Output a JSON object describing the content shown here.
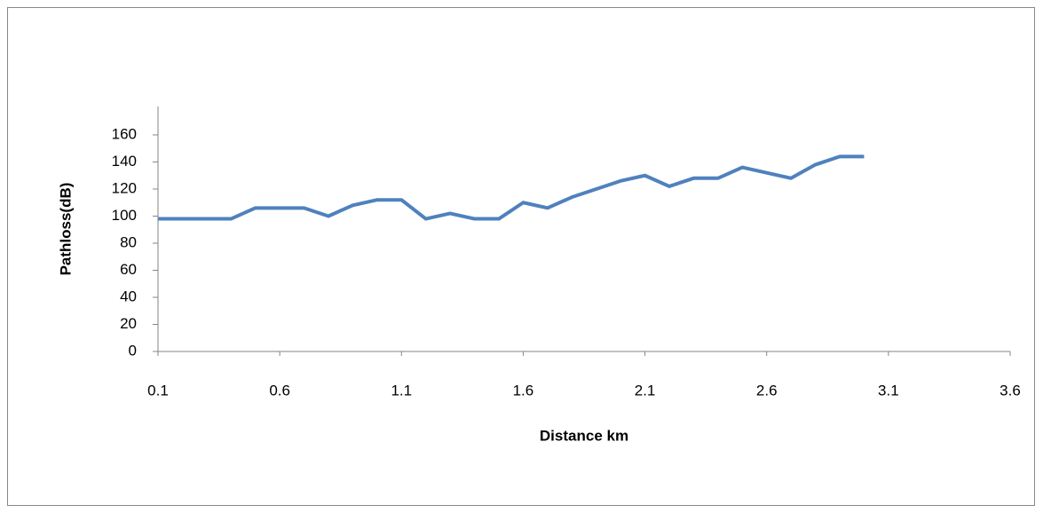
{
  "chart_data": {
    "type": "line",
    "x_label": "Distance km",
    "y_label": "Pathloss(dB)",
    "x": [
      0.1,
      0.2,
      0.3,
      0.4,
      0.5,
      0.6,
      0.7,
      0.8,
      0.9,
      1.0,
      1.1,
      1.2,
      1.3,
      1.4,
      1.5,
      1.6,
      1.7,
      1.8,
      1.9,
      2.0,
      2.1,
      2.2,
      2.3,
      2.4,
      2.5,
      2.6,
      2.7,
      2.8,
      2.9,
      3.0
    ],
    "series": [
      {
        "color": "#4f81bd",
        "values": [
          98,
          98,
          98,
          98,
          106,
          106,
          106,
          100,
          108,
          112,
          112,
          98,
          102,
          98,
          98,
          110,
          106,
          114,
          120,
          126,
          130,
          122,
          128,
          128,
          136,
          132,
          128,
          138,
          144,
          144
        ]
      }
    ],
    "xlim": [
      0.1,
      3.6
    ],
    "xticks": [
      0.1,
      0.6,
      1.1,
      1.6,
      2.1,
      2.6,
      3.1,
      3.6
    ],
    "ylim": [
      0,
      160
    ],
    "yticks": [
      0,
      20,
      40,
      60,
      80,
      100,
      120,
      140,
      160
    ],
    "grid": false
  }
}
